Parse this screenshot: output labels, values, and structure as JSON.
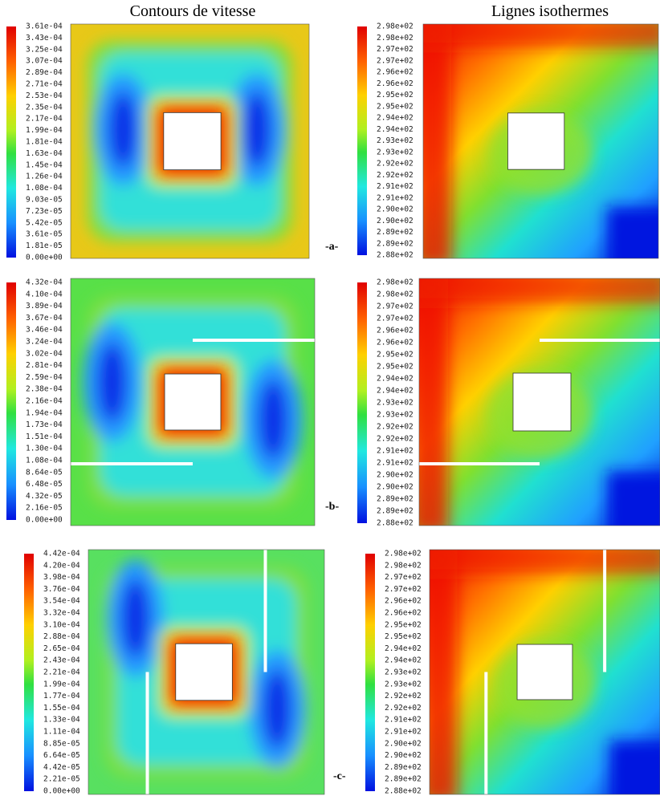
{
  "headers": {
    "left": "Contours de vitesse",
    "right": "Lignes isothermes"
  },
  "panels": [
    {
      "tag": "-a-",
      "velocity_scale": [
        "3.61e-04",
        "3.43e-04",
        "3.25e-04",
        "3.07e-04",
        "2.89e-04",
        "2.71e-04",
        "2.53e-04",
        "2.35e-04",
        "2.17e-04",
        "1.99e-04",
        "1.81e-04",
        "1.63e-04",
        "1.45e-04",
        "1.26e-04",
        "1.08e-04",
        "9.03e-05",
        "7.23e-05",
        "5.42e-05",
        "3.61e-05",
        "1.81e-05",
        "0.00e+00"
      ],
      "temperature_scale": [
        "2.98e+02",
        "2.98e+02",
        "2.97e+02",
        "2.97e+02",
        "2.96e+02",
        "2.96e+02",
        "2.95e+02",
        "2.95e+02",
        "2.94e+02",
        "2.94e+02",
        "2.93e+02",
        "2.93e+02",
        "2.92e+02",
        "2.92e+02",
        "2.91e+02",
        "2.91e+02",
        "2.90e+02",
        "2.90e+02",
        "2.89e+02",
        "2.89e+02",
        "2.88e+02"
      ]
    },
    {
      "tag": "-b-",
      "velocity_scale": [
        "4.32e-04",
        "4.10e-04",
        "3.89e-04",
        "3.67e-04",
        "3.46e-04",
        "3.24e-04",
        "3.02e-04",
        "2.81e-04",
        "2.59e-04",
        "2.38e-04",
        "2.16e-04",
        "1.94e-04",
        "1.73e-04",
        "1.51e-04",
        "1.30e-04",
        "1.08e-04",
        "8.64e-05",
        "6.48e-05",
        "4.32e-05",
        "2.16e-05",
        "0.00e+00"
      ],
      "temperature_scale": [
        "2.98e+02",
        "2.98e+02",
        "2.97e+02",
        "2.97e+02",
        "2.96e+02",
        "2.96e+02",
        "2.95e+02",
        "2.95e+02",
        "2.94e+02",
        "2.94e+02",
        "2.93e+02",
        "2.93e+02",
        "2.92e+02",
        "2.92e+02",
        "2.91e+02",
        "2.91e+02",
        "2.90e+02",
        "2.90e+02",
        "2.89e+02",
        "2.89e+02",
        "2.88e+02"
      ]
    },
    {
      "tag": "-c-",
      "velocity_scale": [
        "4.42e-04",
        "4.20e-04",
        "3.98e-04",
        "3.76e-04",
        "3.54e-04",
        "3.32e-04",
        "3.10e-04",
        "2.88e-04",
        "2.65e-04",
        "2.43e-04",
        "2.21e-04",
        "1.99e-04",
        "1.77e-04",
        "1.55e-04",
        "1.33e-04",
        "1.11e-04",
        "8.85e-05",
        "6.64e-05",
        "4.42e-05",
        "2.21e-05",
        "0.00e+00"
      ],
      "temperature_scale": [
        "2.98e+02",
        "2.98e+02",
        "2.97e+02",
        "2.97e+02",
        "2.96e+02",
        "2.96e+02",
        "2.95e+02",
        "2.95e+02",
        "2.94e+02",
        "2.94e+02",
        "2.93e+02",
        "2.93e+02",
        "2.92e+02",
        "2.92e+02",
        "2.91e+02",
        "2.91e+02",
        "2.90e+02",
        "2.90e+02",
        "2.89e+02",
        "2.89e+02",
        "2.88e+02"
      ]
    }
  ]
}
